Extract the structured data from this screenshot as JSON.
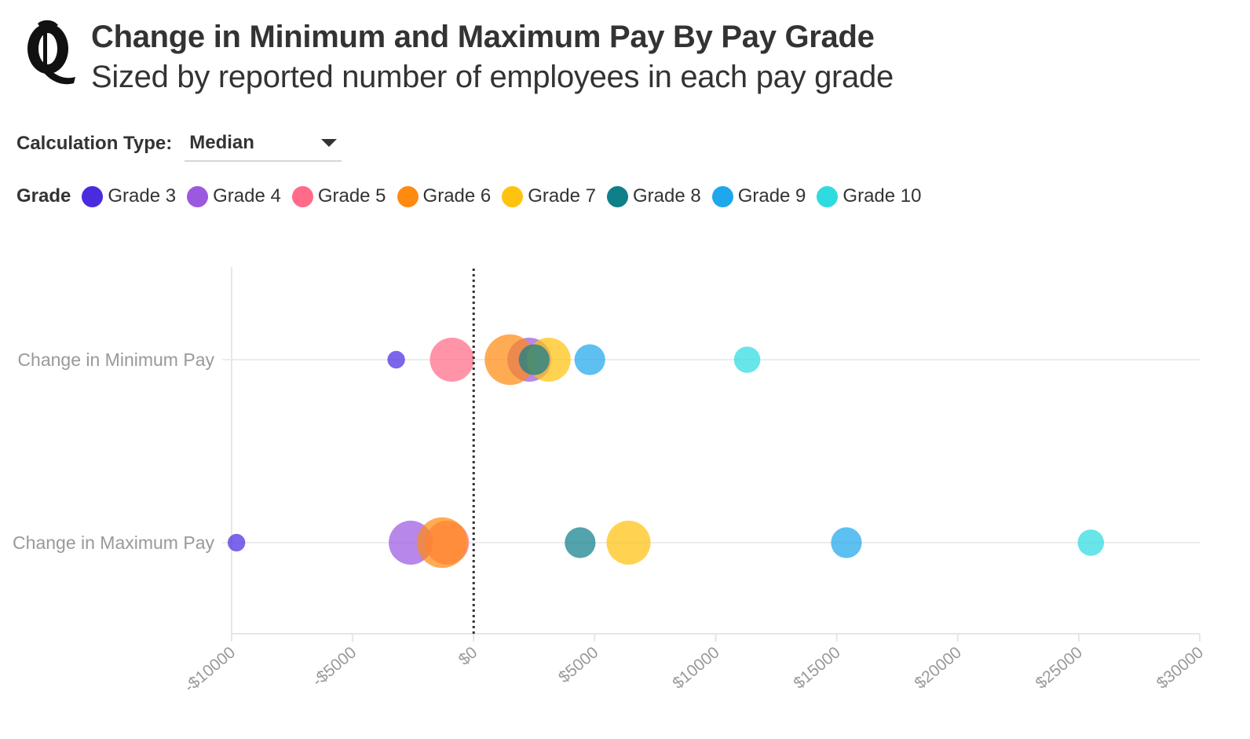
{
  "header": {
    "title": "Change in Minimum and Maximum Pay By Pay Grade",
    "subtitle": "Sized by reported number of employees in each pay grade"
  },
  "control": {
    "label": "Calculation Type:",
    "selected": "Median"
  },
  "legend": {
    "title": "Grade",
    "items": [
      {
        "label": "Grade 3",
        "color": "#4a2be0"
      },
      {
        "label": "Grade 4",
        "color": "#9b59e0"
      },
      {
        "label": "Grade 5",
        "color": "#ff6b88"
      },
      {
        "label": "Grade 6",
        "color": "#ff8a12"
      },
      {
        "label": "Grade 7",
        "color": "#ffc20e"
      },
      {
        "label": "Grade 8",
        "color": "#0f7f8a"
      },
      {
        "label": "Grade 9",
        "color": "#1fa7ec"
      },
      {
        "label": "Grade 10",
        "color": "#2ddbe0"
      }
    ]
  },
  "chart_data": {
    "type": "scatter",
    "categories": [
      "Change in Minimum Pay",
      "Change in Maximum Pay"
    ],
    "x_ticks": [
      "-$10000",
      "-$5000",
      "$0",
      "$5000",
      "$10000",
      "$15000",
      "$20000",
      "$25000",
      "$30000"
    ],
    "xlim": [
      -10000,
      30000
    ],
    "reference_line": 0,
    "series": [
      {
        "name": "Grade 3",
        "color": "#4a2be0",
        "values": [
          -3200,
          -9800
        ],
        "relative_size": 0.4
      },
      {
        "name": "Grade 4",
        "color": "#9b59e0",
        "values": [
          2300,
          -2600
        ],
        "relative_size": 1.0
      },
      {
        "name": "Grade 5",
        "color": "#ff6b88",
        "values": [
          -900,
          -1100
        ],
        "relative_size": 1.0
      },
      {
        "name": "Grade 6",
        "color": "#ff8a12",
        "values": [
          1500,
          -1300
        ],
        "relative_size": 1.15
      },
      {
        "name": "Grade 7",
        "color": "#ffc20e",
        "values": [
          3100,
          6400
        ],
        "relative_size": 1.0
      },
      {
        "name": "Grade 8",
        "color": "#0f7f8a",
        "values": [
          2500,
          4400
        ],
        "relative_size": 0.7
      },
      {
        "name": "Grade 9",
        "color": "#1fa7ec",
        "values": [
          4800,
          15400
        ],
        "relative_size": 0.7
      },
      {
        "name": "Grade 10",
        "color": "#2ddbe0",
        "values": [
          11300,
          25500
        ],
        "relative_size": 0.6
      }
    ]
  }
}
